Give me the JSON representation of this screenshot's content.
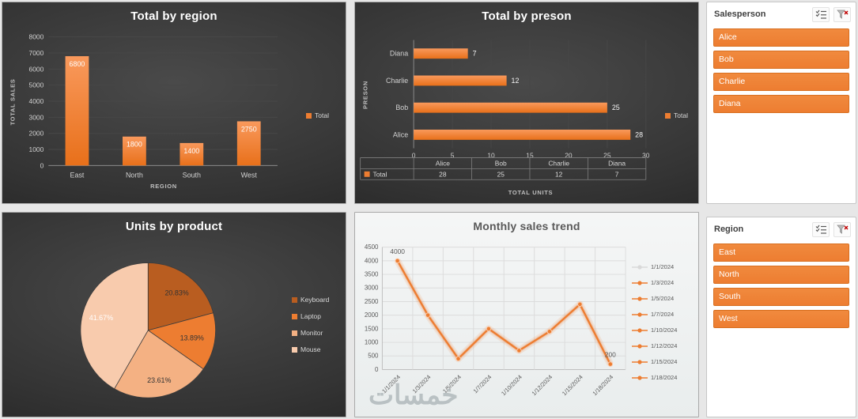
{
  "colors": {
    "accent": "#ED7D31",
    "dark_text": "#d9d9d9",
    "light_text": "#595959"
  },
  "watermark": {
    "text": "خمسات"
  },
  "slicers": [
    {
      "title": "Salesperson",
      "items": [
        "Alice",
        "Bob",
        "Charlie",
        "Diana"
      ]
    },
    {
      "title": "Region",
      "items": [
        "East",
        "North",
        "South",
        "West"
      ]
    }
  ],
  "chart_data": [
    {
      "type": "bar",
      "title": "Total by region",
      "categories": [
        "East",
        "North",
        "South",
        "West"
      ],
      "values": [
        6800,
        1800,
        1400,
        2750
      ],
      "data_labels": [
        "6800",
        "1800",
        "1400",
        "2750"
      ],
      "xlabel": "REGION",
      "ylabel": "TOTAL SALES",
      "ylim": [
        0,
        8000
      ],
      "yticks": [
        0,
        1000,
        2000,
        3000,
        4000,
        5000,
        6000,
        7000,
        8000
      ],
      "legend": [
        {
          "label": "Total",
          "color": "#ED7D31"
        }
      ],
      "legend_position": "right",
      "grid": true,
      "theme": "dark"
    },
    {
      "type": "hbar",
      "title": "Total by preson",
      "categories": [
        "Alice",
        "Bob",
        "Charlie",
        "Diana"
      ],
      "values": [
        28,
        25,
        12,
        7
      ],
      "data_labels": [
        "28",
        "25",
        "12",
        "7"
      ],
      "xlabel": "TOTAL UNITS",
      "ylabel": "PRESON",
      "xlim": [
        0,
        30
      ],
      "xticks": [
        0,
        5,
        10,
        15,
        20,
        25,
        30
      ],
      "legend": [
        {
          "label": "Total",
          "color": "#ED7D31"
        }
      ],
      "legend_position": "right",
      "data_table": {
        "columns": [
          "Alice",
          "Bob",
          "Charlie",
          "Diana"
        ],
        "row_label": "Total",
        "values": [
          "28",
          "25",
          "12",
          "7"
        ]
      },
      "grid": true,
      "theme": "dark"
    },
    {
      "type": "pie",
      "title": "Units by product",
      "labels": [
        "Keyboard",
        "Laptop",
        "Monitor",
        "Mouse"
      ],
      "values": [
        20.83,
        13.89,
        23.61,
        41.67
      ],
      "slice_labels": [
        "20.83%",
        "13.89%",
        "23.61%",
        "41.67%"
      ],
      "colors": [
        "#b95d20",
        "#ed7d31",
        "#f4b183",
        "#f8cbad"
      ],
      "label_colors": [
        "#333333",
        "#333333",
        "#333333",
        "#ffffff"
      ],
      "legend_position": "right",
      "theme": "dark"
    },
    {
      "type": "line",
      "title": "Monthly sales trend",
      "x": [
        "1/1/2024",
        "1/3/2024",
        "1/5/2024",
        "1/7/2024",
        "1/10/2024",
        "1/12/2024",
        "1/15/2024",
        "1/18/2024"
      ],
      "values": [
        4000,
        2000,
        400,
        1500,
        700,
        1400,
        2400,
        200
      ],
      "ylim": [
        0,
        4500
      ],
      "yticks": [
        0,
        500,
        1000,
        1500,
        2000,
        2500,
        3000,
        3500,
        4000,
        4500
      ],
      "point_labels": {
        "0": "4000",
        "7": "200"
      },
      "line_color": "#ED7D31",
      "legend": [
        "1/1/2024",
        "1/3/2024",
        "1/5/2024",
        "1/7/2024",
        "1/10/2024",
        "1/12/2024",
        "1/15/2024",
        "1/18/2024"
      ],
      "legend_colors": [
        "#d9d9d9",
        "#ed7d31",
        "#ed7d31",
        "#ed7d31",
        "#ed7d31",
        "#ed7d31",
        "#ed7d31",
        "#ed7d31"
      ],
      "legend_position": "right",
      "grid": true,
      "theme": "light"
    }
  ]
}
